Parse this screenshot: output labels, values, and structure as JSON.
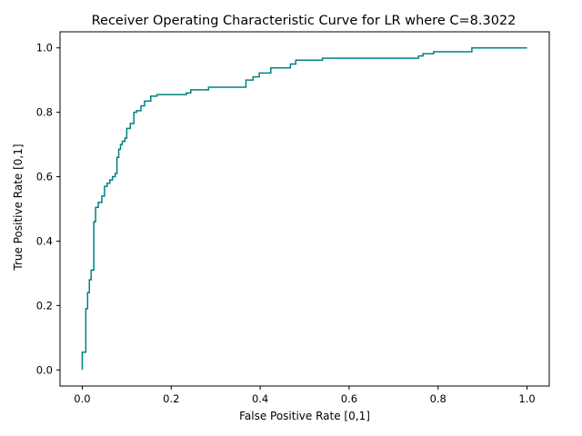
{
  "chart_data": {
    "type": "line",
    "title": "Receiver Operating Characteristic Curve for LR where C=8.3022",
    "xlabel": "False Positive Rate [0,1]",
    "ylabel": "True Positive Rate [0,1]",
    "xlim": [
      -0.05,
      1.05
    ],
    "ylim": [
      -0.05,
      1.05
    ],
    "xticks": [
      0.0,
      0.2,
      0.4,
      0.6,
      0.8,
      1.0
    ],
    "yticks": [
      0.0,
      0.2,
      0.4,
      0.6,
      0.8,
      1.0
    ],
    "xtick_labels": [
      "0.0",
      "0.2",
      "0.4",
      "0.6",
      "0.8",
      "1.0"
    ],
    "ytick_labels": [
      "0.0",
      "0.2",
      "0.4",
      "0.6",
      "0.8",
      "1.0"
    ],
    "grid": false,
    "legend": "none",
    "line_color": "#008080",
    "series": [
      {
        "points": [
          [
            0.0,
            0.0
          ],
          [
            0.0,
            0.055
          ],
          [
            0.008,
            0.055
          ],
          [
            0.008,
            0.065
          ],
          [
            0.008,
            0.19
          ],
          [
            0.012,
            0.19
          ],
          [
            0.012,
            0.24
          ],
          [
            0.016,
            0.24
          ],
          [
            0.016,
            0.28
          ],
          [
            0.02,
            0.28
          ],
          [
            0.02,
            0.31
          ],
          [
            0.026,
            0.31
          ],
          [
            0.026,
            0.46
          ],
          [
            0.03,
            0.46
          ],
          [
            0.03,
            0.505
          ],
          [
            0.036,
            0.505
          ],
          [
            0.036,
            0.52
          ],
          [
            0.044,
            0.52
          ],
          [
            0.044,
            0.54
          ],
          [
            0.05,
            0.54
          ],
          [
            0.05,
            0.57
          ],
          [
            0.056,
            0.57
          ],
          [
            0.056,
            0.58
          ],
          [
            0.062,
            0.58
          ],
          [
            0.062,
            0.59
          ],
          [
            0.068,
            0.59
          ],
          [
            0.068,
            0.6
          ],
          [
            0.074,
            0.6
          ],
          [
            0.074,
            0.61
          ],
          [
            0.078,
            0.61
          ],
          [
            0.078,
            0.66
          ],
          [
            0.082,
            0.66
          ],
          [
            0.082,
            0.685
          ],
          [
            0.086,
            0.685
          ],
          [
            0.086,
            0.7
          ],
          [
            0.09,
            0.7
          ],
          [
            0.09,
            0.71
          ],
          [
            0.096,
            0.71
          ],
          [
            0.096,
            0.72
          ],
          [
            0.1,
            0.72
          ],
          [
            0.1,
            0.75
          ],
          [
            0.108,
            0.75
          ],
          [
            0.108,
            0.765
          ],
          [
            0.116,
            0.765
          ],
          [
            0.116,
            0.8
          ],
          [
            0.122,
            0.8
          ],
          [
            0.122,
            0.805
          ],
          [
            0.132,
            0.805
          ],
          [
            0.132,
            0.82
          ],
          [
            0.14,
            0.82
          ],
          [
            0.14,
            0.835
          ],
          [
            0.154,
            0.835
          ],
          [
            0.154,
            0.85
          ],
          [
            0.168,
            0.85
          ],
          [
            0.168,
            0.855
          ],
          [
            0.234,
            0.855
          ],
          [
            0.234,
            0.86
          ],
          [
            0.244,
            0.86
          ],
          [
            0.244,
            0.87
          ],
          [
            0.284,
            0.87
          ],
          [
            0.284,
            0.878
          ],
          [
            0.368,
            0.878
          ],
          [
            0.368,
            0.9
          ],
          [
            0.384,
            0.9
          ],
          [
            0.384,
            0.91
          ],
          [
            0.398,
            0.91
          ],
          [
            0.398,
            0.922
          ],
          [
            0.424,
            0.922
          ],
          [
            0.424,
            0.938
          ],
          [
            0.468,
            0.938
          ],
          [
            0.468,
            0.95
          ],
          [
            0.48,
            0.95
          ],
          [
            0.48,
            0.962
          ],
          [
            0.54,
            0.962
          ],
          [
            0.54,
            0.968
          ],
          [
            0.756,
            0.968
          ],
          [
            0.756,
            0.975
          ],
          [
            0.766,
            0.975
          ],
          [
            0.766,
            0.982
          ],
          [
            0.79,
            0.982
          ],
          [
            0.79,
            0.988
          ],
          [
            0.876,
            0.988
          ],
          [
            0.876,
            1.0
          ],
          [
            1.0,
            1.0
          ]
        ]
      }
    ]
  }
}
